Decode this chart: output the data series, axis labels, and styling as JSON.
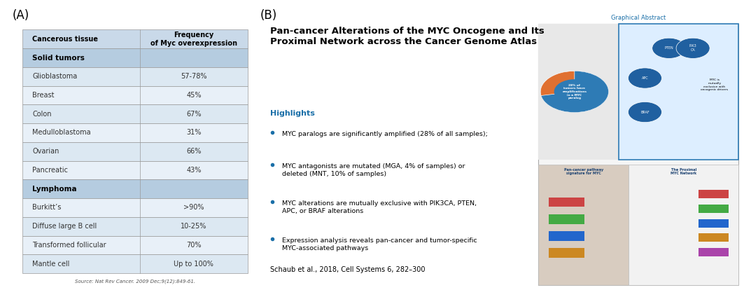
{
  "panel_A_label": "(A)",
  "panel_B_label": "(B)",
  "table_header": [
    "Cancerous tissue",
    "Frequency\nof Myc overexpression"
  ],
  "section_solid": "Solid tumors",
  "section_lymphoma": "Lymphoma",
  "solid_rows": [
    [
      "Glioblastoma",
      "57-78%"
    ],
    [
      "Breast",
      "45%"
    ],
    [
      "Colon",
      "67%"
    ],
    [
      "Medulloblastoma",
      "31%"
    ],
    [
      "Ovarian",
      "66%"
    ],
    [
      "Pancreatic",
      "43%"
    ]
  ],
  "lymphoma_rows": [
    [
      "Burkitt’s",
      ">90%"
    ],
    [
      "Diffuse large B cell",
      "10-25%"
    ],
    [
      "Transformed follicular",
      "70%"
    ],
    [
      "Mantle cell",
      "Up to 100%"
    ]
  ],
  "source_text": "Source: Nat Rev Cancer. 2009 Dec;9(12):849-61.",
  "header_bg": "#c9d9e9",
  "section_bg": "#b5cce0",
  "row_bg_light": "#dce8f2",
  "row_bg_lighter": "#e8f0f8",
  "paper_title": "Pan-cancer Alterations of the MYC Oncogene and Its\nProximal Network across the Cancer Genome Atlas",
  "highlights_title": "Highlights",
  "highlights_color": "#1a6fa8",
  "bullet_points": [
    "MYC paralogs are significantly amplified (28% of all samples);",
    "MYC antagonists are mutated (MGA, 4% of samples) or\ndeleted (MNT, 10% of samples)",
    "MYC alterations are mutually exclusive with PIK3CA, PTEN,\nAPC, or BRAF alterations",
    "Expression analysis reveals pan-cancer and tumor-specific\nMYC-associated pathways"
  ],
  "citation": "Schaub et al., 2018, Cell Systems 6, 282–300",
  "graphical_abstract_label": "Graphical Abstract"
}
